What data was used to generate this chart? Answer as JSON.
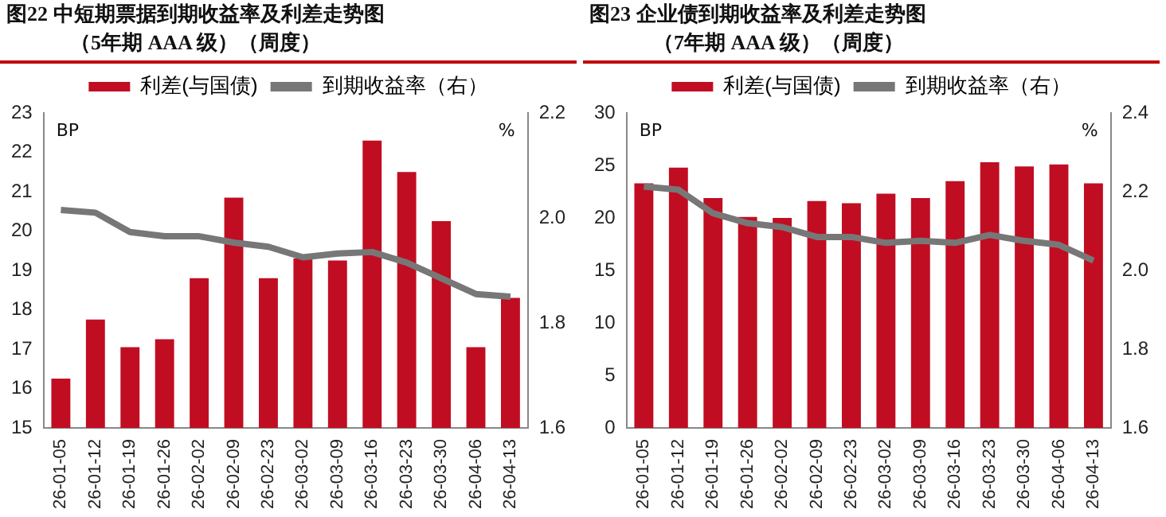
{
  "chart_data": [
    {
      "type": "bar",
      "title": "图22  中短期票据到期收益率及利差走势图",
      "subtitle": "（5年期 AAA 级）（周度）",
      "annotations": [
        "BP",
        "%"
      ],
      "categories": [
        "26-01-05",
        "26-01-12",
        "26-01-19",
        "26-01-26",
        "26-02-02",
        "26-02-09",
        "26-02-23",
        "26-03-02",
        "26-03-09",
        "26-03-16",
        "26-03-23",
        "26-03-30",
        "26-04-06",
        "26-04-13"
      ],
      "series": [
        {
          "name": "利差(与国债)",
          "color": "#c00d22",
          "values": [
            16.25,
            17.75,
            17.05,
            17.25,
            18.8,
            20.85,
            18.8,
            19.3,
            19.25,
            22.3,
            21.5,
            20.25,
            17.05,
            18.3
          ]
        },
        {
          "name": "到期收益率（右）",
          "type": "line",
          "axis": "y2",
          "color": "#777777",
          "values": [
            2.015,
            2.01,
            1.973,
            1.965,
            1.965,
            1.953,
            1.945,
            1.925,
            1.932,
            1.935,
            1.915,
            1.885,
            1.855,
            1.85
          ]
        }
      ],
      "ylim": [
        15,
        23
      ],
      "yticks": [
        15,
        16,
        17,
        18,
        19,
        20,
        21,
        22,
        23
      ],
      "y2lim": [
        1.6,
        2.2
      ],
      "y2ticks": [
        {
          "value": 1.6,
          "label": "1.6"
        },
        {
          "value": 1.8,
          "label": "1.8"
        },
        {
          "value": 2.0,
          "label": "2.0"
        },
        {
          "value": 2.2,
          "label": "2.2"
        }
      ],
      "legend": "top",
      "grid": false,
      "marker": "none"
    },
    {
      "type": "bar",
      "title": "图23  企业债到期收益率及利差走势图",
      "subtitle": "（7年期 AAA 级）（周度）",
      "annotations": [
        "BP",
        "%"
      ],
      "categories": [
        "26-01-05",
        "26-01-12",
        "26-01-19",
        "26-01-26",
        "26-02-02",
        "26-02-09",
        "26-02-23",
        "26-03-02",
        "26-03-09",
        "26-03-16",
        "26-03-23",
        "26-03-30",
        "26-04-06",
        "26-04-13"
      ],
      "series": [
        {
          "name": "利差(与国债)",
          "color": "#c00d22",
          "values": [
            23.3,
            24.8,
            21.9,
            20.1,
            20.0,
            21.6,
            21.4,
            22.3,
            21.9,
            23.5,
            25.3,
            24.9,
            25.1,
            23.3
          ]
        },
        {
          "name": "到期收益率（右）",
          "type": "line",
          "axis": "y2",
          "color": "#777777",
          "values": [
            2.213,
            2.205,
            2.145,
            2.12,
            2.11,
            2.085,
            2.085,
            2.07,
            2.075,
            2.07,
            2.09,
            2.075,
            2.065,
            2.025
          ]
        }
      ],
      "ylim": [
        0,
        30
      ],
      "yticks": [
        0,
        5,
        10,
        15,
        20,
        25,
        30
      ],
      "y2lim": [
        1.6,
        2.4
      ],
      "y2ticks": [
        {
          "value": 1.6,
          "label": "1.6"
        },
        {
          "value": 1.8,
          "label": "1.8"
        },
        {
          "value": 2.0,
          "label": "2.0"
        },
        {
          "value": 2.2,
          "label": "2.2"
        },
        {
          "value": 2.4,
          "label": "2.4"
        }
      ],
      "legend": "top",
      "grid": false,
      "marker": "none"
    }
  ]
}
